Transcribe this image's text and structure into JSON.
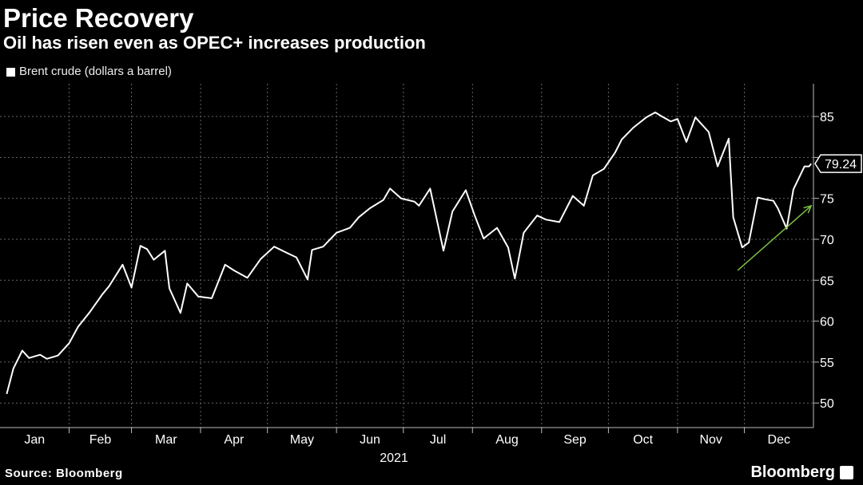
{
  "header": {
    "title": "Price Recovery",
    "subtitle": "Oil has risen even as OPEC+ increases production"
  },
  "legend": {
    "label": "Brent crude (dollars a barrel)",
    "color": "#ffffff"
  },
  "footer": {
    "source": "Source: Bloomberg",
    "brand": "Bloomberg"
  },
  "colors": {
    "line": "#ffffff",
    "arrow": "#7cc043",
    "grid": "#666666",
    "background": "#000000"
  },
  "chart_data": {
    "type": "line",
    "title": "Price Recovery",
    "subtitle": "Oil has risen even as OPEC+ increases production",
    "xlabel": "2021",
    "ylabel": "",
    "ylim": [
      47,
      89
    ],
    "yticks": [
      50,
      55,
      60,
      65,
      70,
      75,
      80,
      85
    ],
    "x_categories": [
      "Jan",
      "Feb",
      "Mar",
      "Apr",
      "May",
      "Jun",
      "Jul",
      "Aug",
      "Sep",
      "Oct",
      "Nov",
      "Dec"
    ],
    "last_value_label": "79.24",
    "grid": true,
    "legend_position": "top-left",
    "series": [
      {
        "name": "Brent crude (dollars a barrel)",
        "x": [
          "2021-01-04",
          "2021-01-07",
          "2021-01-11",
          "2021-01-14",
          "2021-01-19",
          "2021-01-22",
          "2021-01-27",
          "2021-02-01",
          "2021-02-05",
          "2021-02-10",
          "2021-02-16",
          "2021-02-19",
          "2021-02-25",
          "2021-03-01",
          "2021-03-05",
          "2021-03-08",
          "2021-03-11",
          "2021-03-16",
          "2021-03-18",
          "2021-03-23",
          "2021-03-26",
          "2021-03-31",
          "2021-04-06",
          "2021-04-12",
          "2021-04-16",
          "2021-04-22",
          "2021-04-28",
          "2021-05-04",
          "2021-05-10",
          "2021-05-14",
          "2021-05-19",
          "2021-05-21",
          "2021-05-26",
          "2021-06-01",
          "2021-06-07",
          "2021-06-11",
          "2021-06-16",
          "2021-06-22",
          "2021-06-25",
          "2021-06-30",
          "2021-07-06",
          "2021-07-08",
          "2021-07-13",
          "2021-07-19",
          "2021-07-23",
          "2021-07-29",
          "2021-08-02",
          "2021-08-06",
          "2021-08-12",
          "2021-08-17",
          "2021-08-20",
          "2021-08-24",
          "2021-08-30",
          "2021-09-03",
          "2021-09-09",
          "2021-09-15",
          "2021-09-20",
          "2021-09-24",
          "2021-09-29",
          "2021-10-04",
          "2021-10-07",
          "2021-10-12",
          "2021-10-18",
          "2021-10-22",
          "2021-10-25",
          "2021-10-29",
          "2021-11-01",
          "2021-11-05",
          "2021-11-09",
          "2021-11-15",
          "2021-11-19",
          "2021-11-24",
          "2021-11-26",
          "2021-11-30",
          "2021-12-03",
          "2021-12-07",
          "2021-12-10",
          "2021-12-14",
          "2021-12-16",
          "2021-12-20",
          "2021-12-23",
          "2021-12-28",
          "2021-12-30",
          "2021-12-31"
        ],
        "y": [
          51.1,
          54.2,
          56.4,
          55.5,
          55.9,
          55.4,
          55.8,
          57.3,
          59.3,
          61.0,
          63.3,
          64.3,
          66.9,
          64.1,
          69.2,
          68.8,
          67.5,
          68.6,
          64.0,
          61.0,
          64.6,
          63.0,
          62.8,
          66.9,
          66.2,
          65.3,
          67.6,
          69.1,
          68.3,
          67.8,
          65.1,
          68.7,
          69.1,
          70.8,
          71.4,
          72.7,
          73.8,
          74.8,
          76.2,
          75.0,
          74.6,
          74.1,
          76.2,
          68.6,
          73.4,
          76.0,
          72.9,
          70.1,
          71.4,
          69.0,
          65.2,
          70.8,
          72.9,
          72.4,
          72.1,
          75.3,
          74.1,
          77.8,
          78.6,
          80.6,
          82.2,
          83.6,
          84.9,
          85.5,
          85.0,
          84.4,
          84.7,
          81.9,
          84.9,
          83.1,
          78.9,
          82.3,
          72.7,
          69.0,
          69.6,
          75.1,
          74.9,
          74.7,
          73.8,
          71.3,
          76.1,
          78.9,
          78.9,
          79.24
        ]
      }
    ]
  }
}
